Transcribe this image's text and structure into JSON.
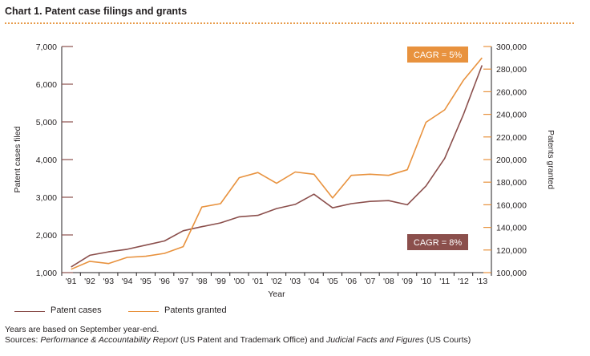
{
  "title": "Chart 1. Patent case filings and grants",
  "legend": {
    "cases_label": "Patent cases",
    "grants_label": "Patents granted"
  },
  "notes": {
    "line1": "Years are based on September year-end.",
    "sources_prefix": "Sources: ",
    "source1_title": "Performance & Accountability Report",
    "source1_org": " (US Patent and Trademark Office) and ",
    "source2_title": "Judicial Facts and Figures",
    "source2_org": " (US Courts)"
  },
  "colors": {
    "cases": "#8b4f4c",
    "grants": "#e8923e",
    "axis": "#231f20"
  },
  "chart_data": {
    "type": "line",
    "categories": [
      "'91",
      "'92",
      "'93",
      "'94",
      "'95",
      "'96",
      "'97",
      "'98",
      "'99",
      "'00",
      "'01",
      "'02",
      "'03",
      "'04",
      "'05",
      "'06",
      "'07",
      "'08",
      "'09",
      "'10",
      "'11",
      "'12",
      "'13"
    ],
    "xlabel": "Year",
    "ylabel_left": "Patent cases filed",
    "ylabel_right": "Patents granted",
    "ylim_left": [
      1000,
      7000
    ],
    "ylim_right": [
      100000,
      300000
    ],
    "yticks_left": [
      "1,000",
      "2,000",
      "3,000",
      "4,000",
      "5,000",
      "6,000",
      "7,000"
    ],
    "yticks_right": [
      "100,000",
      "120,000",
      "140,000",
      "160,000",
      "180,000",
      "200,000",
      "220,000",
      "240,000",
      "260,000",
      "280,000",
      "300,000"
    ],
    "series": [
      {
        "name": "Patent cases",
        "axis": "left",
        "values": [
          1150,
          1460,
          1550,
          1620,
          1730,
          1840,
          2110,
          2220,
          2320,
          2480,
          2520,
          2700,
          2810,
          3080,
          2720,
          2830,
          2890,
          2910,
          2800,
          3300,
          4030,
          5190,
          6500
        ]
      },
      {
        "name": "Patents granted",
        "axis": "right",
        "values": [
          103000,
          110000,
          108000,
          113500,
          114500,
          117000,
          123000,
          158000,
          161000,
          184000,
          188500,
          179000,
          189000,
          187000,
          166000,
          186000,
          187000,
          186000,
          191000,
          233000,
          244000,
          270000,
          290000
        ]
      }
    ],
    "annotations": [
      {
        "text": "CAGR = 5%",
        "series": "Patents granted",
        "placement": "top-right"
      },
      {
        "text": "CAGR = 8%",
        "series": "Patent cases",
        "placement": "bottom-right"
      }
    ],
    "grid": false,
    "legend_position": "bottom-left"
  }
}
